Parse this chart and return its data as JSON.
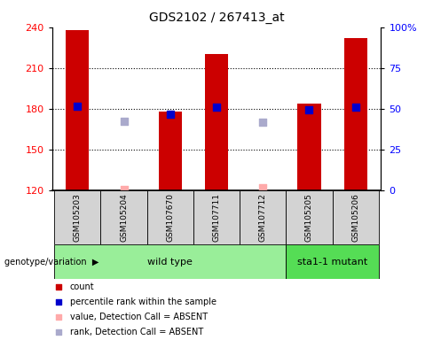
{
  "title": "GDS2102 / 267413_at",
  "samples": [
    "GSM105203",
    "GSM105204",
    "GSM107670",
    "GSM107711",
    "GSM107712",
    "GSM105205",
    "GSM105206"
  ],
  "groups": {
    "wild type": [
      0,
      1,
      2,
      3,
      4
    ],
    "sta1-1 mutant": [
      5,
      6
    ]
  },
  "ylim_left": [
    120,
    240
  ],
  "ylim_right": [
    0,
    100
  ],
  "yticks_left": [
    120,
    150,
    180,
    210,
    240
  ],
  "yticks_right": [
    0,
    25,
    50,
    75,
    100
  ],
  "ytick_labels_right": [
    "0",
    "25",
    "50",
    "75",
    "100%"
  ],
  "red_bars": [
    238,
    120,
    178,
    220,
    120,
    184,
    232
  ],
  "blue_squares": [
    182,
    null,
    176,
    181,
    null,
    179,
    181
  ],
  "pink_squares": [
    null,
    121,
    null,
    null,
    122,
    null,
    null
  ],
  "lavender_squares": [
    null,
    171,
    null,
    null,
    170,
    null,
    null
  ],
  "bar_width": 0.5,
  "bar_color": "#cc0000",
  "blue_color": "#0000cc",
  "pink_color": "#ffaaaa",
  "lavender_color": "#aaaacc",
  "group_colors": {
    "wild type": "#99ee99",
    "sta1-1 mutant": "#55dd55"
  },
  "legend_items": [
    {
      "label": "count",
      "color": "#cc0000"
    },
    {
      "label": "percentile rank within the sample",
      "color": "#0000cc"
    },
    {
      "label": "value, Detection Call = ABSENT",
      "color": "#ffaaaa"
    },
    {
      "label": "rank, Detection Call = ABSENT",
      "color": "#aaaacc"
    }
  ],
  "fig_width": 4.88,
  "fig_height": 3.84,
  "dpi": 100
}
